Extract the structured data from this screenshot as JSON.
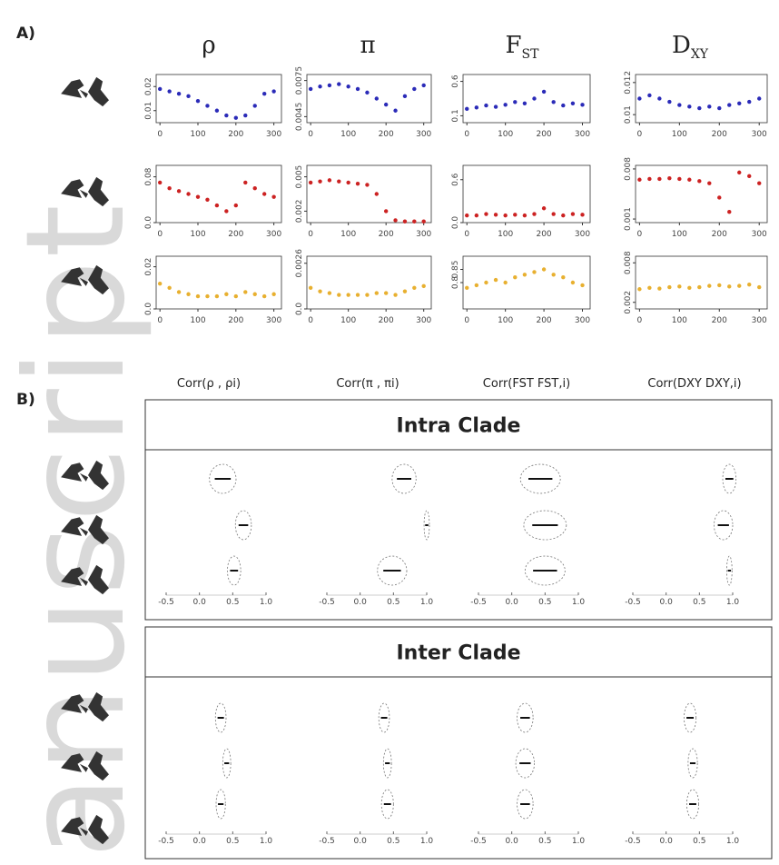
{
  "label_a": "A)",
  "label_b": "B)",
  "watermark": "anuscript",
  "panel_a": {
    "x": [
      0,
      25,
      50,
      75,
      100,
      125,
      150,
      175,
      200,
      225,
      250,
      275,
      300
    ],
    "xlim": [
      -10,
      320
    ],
    "xticks": [
      0,
      100,
      200,
      300
    ],
    "row_colors": [
      "#2b2bb8",
      "#cc2222",
      "#e8b030"
    ],
    "columns": [
      {
        "symbol": "ρ",
        "rows": [
          {
            "ylim": [
              0.005,
              0.025
            ],
            "yticks": [
              {
                "value": 0.01,
                "label": "0.01"
              },
              {
                "value": 0.02,
                "label": "0.02"
              }
            ],
            "values": [
              0.019,
              0.018,
              0.017,
              0.016,
              0.014,
              0.012,
              0.01,
              0.008,
              0.007,
              0.008,
              0.012,
              0.017,
              0.018
            ]
          },
          {
            "ylim": [
              0,
              0.1
            ],
            "yticks": [
              {
                "value": 0,
                "label": "0.0"
              },
              {
                "value": 0.08,
                "label": "0.08"
              }
            ],
            "values": [
              0.07,
              0.06,
              0.055,
              0.05,
              0.045,
              0.04,
              0.03,
              0.02,
              0.03,
              0.07,
              0.06,
              0.05,
              0.045
            ]
          },
          {
            "ylim": [
              0,
              0.025
            ],
            "yticks": [
              {
                "value": 0,
                "label": "0.0"
              },
              {
                "value": 0.02,
                "label": "0.02"
              }
            ],
            "values": [
              0.012,
              0.01,
              0.008,
              0.007,
              0.006,
              0.006,
              0.006,
              0.007,
              0.006,
              0.008,
              0.007,
              0.006,
              0.007
            ]
          }
        ]
      },
      {
        "symbol": "π",
        "rows": [
          {
            "ylim": [
              0.004,
              0.008
            ],
            "yticks": [
              0.0045,
              0.0075
            ],
            "values": [
              0.0068,
              0.007,
              0.0071,
              0.0072,
              0.007,
              0.0068,
              0.0065,
              0.006,
              0.0055,
              0.005,
              0.0062,
              0.0068,
              0.0071
            ]
          },
          {
            "ylim": [
              0.001,
              0.006
            ],
            "yticks": [
              0.002,
              0.005
            ],
            "values": [
              0.0045,
              0.0046,
              0.0047,
              0.0046,
              0.0045,
              0.0044,
              0.0043,
              0.0035,
              0.002,
              0.0012,
              0.0011,
              0.0011,
              0.0011
            ]
          },
          {
            "ylim": [
              0,
              0.003
            ],
            "yticks": [
              {
                "value": 0,
                "label": "0.0"
              },
              0.0026
            ],
            "values": [
              0.0012,
              0.001,
              0.0009,
              0.0008,
              0.0008,
              0.0008,
              0.0008,
              0.0009,
              0.0009,
              0.0008,
              0.001,
              0.0012,
              0.0013
            ]
          }
        ]
      },
      {
        "symbol": "F",
        "subscript": "ST",
        "rows": [
          {
            "ylim": [
              0,
              0.7
            ],
            "yticks": [
              0.1,
              0.6
            ],
            "values": [
              0.2,
              0.22,
              0.25,
              0.23,
              0.26,
              0.3,
              0.28,
              0.35,
              0.45,
              0.3,
              0.25,
              0.28,
              0.26
            ]
          },
          {
            "ylim": [
              0,
              0.8
            ],
            "yticks": [
              {
                "value": 0,
                "label": "0.0"
              },
              0.6
            ],
            "values": [
              0.1,
              0.1,
              0.12,
              0.11,
              0.1,
              0.11,
              0.1,
              0.12,
              0.2,
              0.12,
              0.1,
              0.12,
              0.11
            ]
          },
          {
            "ylim": [
              0.7,
              0.9
            ],
            "yticks": [
              0.8,
              0.85
            ],
            "values": [
              0.78,
              0.79,
              0.8,
              0.81,
              0.8,
              0.82,
              0.83,
              0.84,
              0.85,
              0.83,
              0.82,
              0.8,
              0.79
            ]
          }
        ]
      },
      {
        "symbol": "D",
        "subscript": "XY",
        "rows": [
          {
            "ylim": [
              0.0095,
              0.0125
            ],
            "yticks": [
              0.01,
              0.012
            ],
            "values": [
              0.011,
              0.0112,
              0.011,
              0.0108,
              0.0106,
              0.0105,
              0.0104,
              0.0105,
              0.0104,
              0.0106,
              0.0107,
              0.0108,
              0.011
            ]
          },
          {
            "ylim": [
              0.0005,
              0.0085
            ],
            "yticks": [
              0.001,
              0.008
            ],
            "values": [
              0.0065,
              0.0066,
              0.0066,
              0.0067,
              0.0066,
              0.0065,
              0.0063,
              0.006,
              0.004,
              0.002,
              0.0075,
              0.007,
              0.006
            ]
          },
          {
            "ylim": [
              0.001,
              0.009
            ],
            "yticks": [
              0.002,
              0.008
            ],
            "values": [
              0.004,
              0.0042,
              0.0041,
              0.0043,
              0.0044,
              0.0042,
              0.0043,
              0.0045,
              0.0046,
              0.0044,
              0.0045,
              0.0047,
              0.0043
            ]
          }
        ]
      }
    ]
  },
  "panel_b": {
    "headers": [
      "Corr(ρ , ρi)",
      "Corr(π , πi)",
      "Corr(FST FST,i)",
      "Corr(DXY DXY,i)"
    ],
    "xlim": [
      -0.5,
      1.0
    ],
    "xticks": [
      -0.5,
      {
        "value": 0,
        "label": "0.0"
      },
      0.5,
      {
        "value": 1,
        "label": "1.0"
      }
    ],
    "sections": [
      {
        "title": "Intra Clade",
        "columns": [
          {
            "medians": [
              0.35,
              0.66,
              0.52
            ],
            "spreads": [
              0.2,
              0.12,
              0.1
            ]
          },
          {
            "medians": [
              0.66,
              1.0,
              0.48
            ],
            "spreads": [
              0.18,
              0.04,
              0.22
            ]
          },
          {
            "medians": [
              0.43,
              0.5,
              0.5
            ],
            "spreads": [
              0.3,
              0.32,
              0.3
            ]
          },
          {
            "medians": [
              0.95,
              0.86,
              0.95
            ],
            "spreads": [
              0.1,
              0.14,
              0.04
            ]
          }
        ]
      },
      {
        "title": "Inter Clade",
        "columns": [
          {
            "medians": [
              0.32,
              0.41,
              0.32
            ],
            "spreads": [
              0.08,
              0.06,
              0.07
            ]
          },
          {
            "medians": [
              0.36,
              0.41,
              0.41
            ],
            "spreads": [
              0.08,
              0.06,
              0.09
            ]
          },
          {
            "medians": [
              0.2,
              0.2,
              0.2
            ],
            "spreads": [
              0.12,
              0.14,
              0.12
            ]
          },
          {
            "medians": [
              0.36,
              0.4,
              0.4
            ],
            "spreads": [
              0.09,
              0.07,
              0.09
            ]
          }
        ]
      }
    ]
  }
}
